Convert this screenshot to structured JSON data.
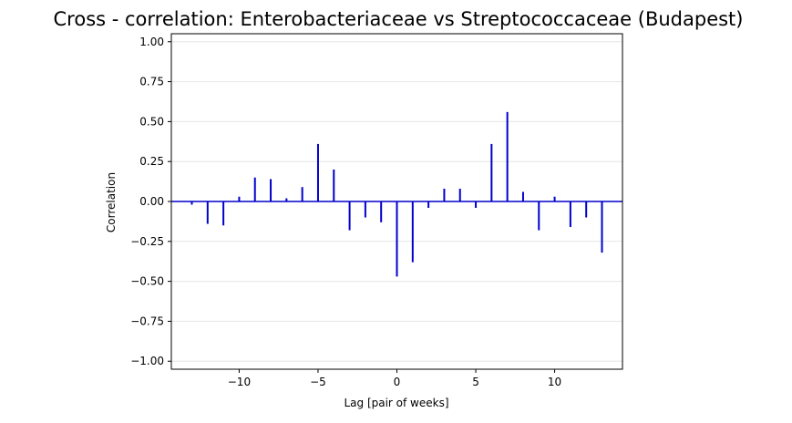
{
  "chart_data": {
    "type": "bar",
    "title": "Cross - correlation: Enterobacteriaceae vs Streptococcaceae (Budapest)",
    "xlabel": "Lag [pair of weeks]",
    "ylabel": "Correlation",
    "xlim": [
      -14.3,
      14.3
    ],
    "ylim": [
      -1.05,
      1.05
    ],
    "xticks": [
      -10,
      -5,
      0,
      5,
      10
    ],
    "xtick_labels": [
      "−10",
      "−5",
      "0",
      "5",
      "10"
    ],
    "yticks": [
      -1.0,
      -0.75,
      -0.5,
      -0.25,
      0.0,
      0.25,
      0.5,
      0.75,
      1.0
    ],
    "ytick_labels": [
      "−1.00",
      "−0.75",
      "−0.50",
      "−0.25",
      "0.00",
      "0.25",
      "0.50",
      "0.75",
      "1.00"
    ],
    "grid": "horizontal",
    "lags": [
      -13,
      -12,
      -11,
      -10,
      -9,
      -8,
      -7,
      -6,
      -5,
      -4,
      -3,
      -2,
      -1,
      0,
      1,
      2,
      3,
      4,
      5,
      6,
      7,
      8,
      9,
      10,
      11,
      12,
      13
    ],
    "values": [
      -0.02,
      -0.14,
      -0.15,
      0.03,
      0.15,
      0.14,
      0.02,
      0.09,
      0.36,
      0.2,
      -0.18,
      -0.1,
      -0.13,
      -0.47,
      -0.38,
      -0.04,
      0.08,
      0.08,
      -0.04,
      0.36,
      0.56,
      0.06,
      -0.18,
      0.03,
      -0.16,
      -0.1,
      -0.32
    ],
    "bar_color": "#0000cc",
    "baseline_color": "#0000cc",
    "grid_color": "#e6e6e6"
  }
}
